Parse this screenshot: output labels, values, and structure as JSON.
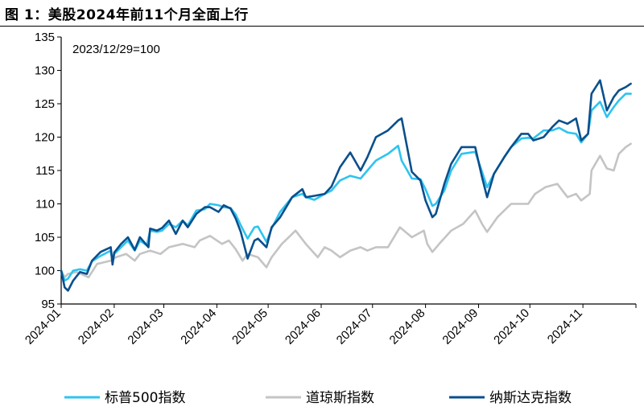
{
  "title": "图 1：美股2024年前11个月全面上行",
  "chart_data": {
    "type": "line",
    "annotation": "2023/12/29=100",
    "ylim": [
      95,
      135
    ],
    "yticks": [
      95,
      100,
      105,
      110,
      115,
      120,
      125,
      130,
      135
    ],
    "xlim": [
      "2024-01-01",
      "2024-12-02"
    ],
    "xticks": [
      "2024-01",
      "2024-02",
      "2024-03",
      "2024-04",
      "2024-05",
      "2024-06",
      "2024-07",
      "2024-08",
      "2024-09",
      "2024-10",
      "2024-11"
    ],
    "grid": false,
    "legend_position": "bottom",
    "series": [
      {
        "name": "标普500指数",
        "color": "#2EC4F0",
        "points": [
          [
            "2024-01-01",
            100.0
          ],
          [
            "2024-01-03",
            98.5
          ],
          [
            "2024-01-05",
            98.8
          ],
          [
            "2024-01-08",
            100.0
          ],
          [
            "2024-01-12",
            100.2
          ],
          [
            "2024-01-16",
            100.0
          ],
          [
            "2024-01-19",
            101.4
          ],
          [
            "2024-01-24",
            102.2
          ],
          [
            "2024-01-30",
            103.0
          ],
          [
            "2024-01-31",
            101.3
          ],
          [
            "2024-02-01",
            102.5
          ],
          [
            "2024-02-05",
            103.5
          ],
          [
            "2024-02-09",
            104.5
          ],
          [
            "2024-02-13",
            103.0
          ],
          [
            "2024-02-16",
            104.5
          ],
          [
            "2024-02-20",
            103.8
          ],
          [
            "2024-02-22",
            106.0
          ],
          [
            "2024-02-26",
            105.8
          ],
          [
            "2024-02-29",
            106.0
          ],
          [
            "2024-03-04",
            107.0
          ],
          [
            "2024-03-08",
            106.5
          ],
          [
            "2024-03-12",
            107.5
          ],
          [
            "2024-03-15",
            106.8
          ],
          [
            "2024-03-20",
            109.0
          ],
          [
            "2024-03-25",
            109.2
          ],
          [
            "2024-03-28",
            110.0
          ],
          [
            "2024-04-02",
            109.8
          ],
          [
            "2024-04-05",
            109.5
          ],
          [
            "2024-04-09",
            109.4
          ],
          [
            "2024-04-12",
            108.4
          ],
          [
            "2024-04-15",
            106.8
          ],
          [
            "2024-04-19",
            104.8
          ],
          [
            "2024-04-23",
            106.5
          ],
          [
            "2024-04-25",
            106.6
          ],
          [
            "2024-04-30",
            104.3
          ],
          [
            "2024-05-03",
            106.3
          ],
          [
            "2024-05-08",
            108.8
          ],
          [
            "2024-05-15",
            111.0
          ],
          [
            "2024-05-21",
            111.5
          ],
          [
            "2024-05-23",
            111.0
          ],
          [
            "2024-05-28",
            110.6
          ],
          [
            "2024-06-03",
            111.5
          ],
          [
            "2024-06-07",
            112.0
          ],
          [
            "2024-06-12",
            113.5
          ],
          [
            "2024-06-18",
            114.2
          ],
          [
            "2024-06-24",
            113.8
          ],
          [
            "2024-06-28",
            115.0
          ],
          [
            "2024-07-03",
            116.5
          ],
          [
            "2024-07-10",
            117.5
          ],
          [
            "2024-07-16",
            118.7
          ],
          [
            "2024-07-18",
            116.5
          ],
          [
            "2024-07-24",
            113.8
          ],
          [
            "2024-07-29",
            113.7
          ],
          [
            "2024-08-01",
            112.2
          ],
          [
            "2024-08-05",
            109.7
          ],
          [
            "2024-08-07",
            110.0
          ],
          [
            "2024-08-12",
            112.0
          ],
          [
            "2024-08-16",
            115.0
          ],
          [
            "2024-08-22",
            117.5
          ],
          [
            "2024-08-30",
            117.8
          ],
          [
            "2024-09-03",
            114.8
          ],
          [
            "2024-09-06",
            112.5
          ],
          [
            "2024-09-10",
            114.5
          ],
          [
            "2024-09-16",
            117.0
          ],
          [
            "2024-09-20",
            118.5
          ],
          [
            "2024-09-26",
            119.8
          ],
          [
            "2024-09-30",
            119.9
          ],
          [
            "2024-10-03",
            119.8
          ],
          [
            "2024-10-09",
            121.0
          ],
          [
            "2024-10-14",
            121.0
          ],
          [
            "2024-10-18",
            121.4
          ],
          [
            "2024-10-23",
            120.7
          ],
          [
            "2024-10-28",
            120.5
          ],
          [
            "2024-10-31",
            119.2
          ],
          [
            "2024-11-04",
            120.5
          ],
          [
            "2024-11-06",
            124.0
          ],
          [
            "2024-11-11",
            125.3
          ],
          [
            "2024-11-15",
            123.0
          ],
          [
            "2024-11-19",
            124.5
          ],
          [
            "2024-11-22",
            125.5
          ],
          [
            "2024-11-26",
            126.5
          ],
          [
            "2024-11-29",
            126.5
          ]
        ]
      },
      {
        "name": "道琼斯指数",
        "color": "#C4C4C4",
        "points": [
          [
            "2024-01-01",
            100.0
          ],
          [
            "2024-01-03",
            99.0
          ],
          [
            "2024-01-05",
            99.5
          ],
          [
            "2024-01-10",
            99.8
          ],
          [
            "2024-01-17",
            99.0
          ],
          [
            "2024-01-22",
            101.0
          ],
          [
            "2024-01-30",
            101.5
          ],
          [
            "2024-02-02",
            102.0
          ],
          [
            "2024-02-08",
            102.5
          ],
          [
            "2024-02-13",
            101.5
          ],
          [
            "2024-02-16",
            102.5
          ],
          [
            "2024-02-22",
            103.0
          ],
          [
            "2024-02-28",
            102.5
          ],
          [
            "2024-03-04",
            103.5
          ],
          [
            "2024-03-12",
            104.0
          ],
          [
            "2024-03-19",
            103.5
          ],
          [
            "2024-03-22",
            104.5
          ],
          [
            "2024-03-28",
            105.2
          ],
          [
            "2024-04-04",
            104.0
          ],
          [
            "2024-04-08",
            104.5
          ],
          [
            "2024-04-12",
            103.2
          ],
          [
            "2024-04-16",
            101.5
          ],
          [
            "2024-04-19",
            102.5
          ],
          [
            "2024-04-25",
            102.0
          ],
          [
            "2024-04-30",
            100.5
          ],
          [
            "2024-05-03",
            102.0
          ],
          [
            "2024-05-09",
            104.0
          ],
          [
            "2024-05-15",
            105.5
          ],
          [
            "2024-05-17",
            106.0
          ],
          [
            "2024-05-23",
            104.0
          ],
          [
            "2024-05-30",
            102.0
          ],
          [
            "2024-06-03",
            103.5
          ],
          [
            "2024-06-07",
            103.0
          ],
          [
            "2024-06-12",
            102.0
          ],
          [
            "2024-06-18",
            103.0
          ],
          [
            "2024-06-24",
            103.5
          ],
          [
            "2024-06-28",
            103.0
          ],
          [
            "2024-07-03",
            103.5
          ],
          [
            "2024-07-10",
            103.5
          ],
          [
            "2024-07-17",
            106.5
          ],
          [
            "2024-07-24",
            105.0
          ],
          [
            "2024-07-31",
            106.0
          ],
          [
            "2024-08-02",
            104.0
          ],
          [
            "2024-08-05",
            102.8
          ],
          [
            "2024-08-09",
            104.0
          ],
          [
            "2024-08-16",
            106.0
          ],
          [
            "2024-08-23",
            107.0
          ],
          [
            "2024-08-30",
            109.0
          ],
          [
            "2024-09-03",
            107.0
          ],
          [
            "2024-09-06",
            105.8
          ],
          [
            "2024-09-12",
            108.0
          ],
          [
            "2024-09-20",
            110.0
          ],
          [
            "2024-09-30",
            110.0
          ],
          [
            "2024-10-04",
            111.5
          ],
          [
            "2024-10-10",
            112.5
          ],
          [
            "2024-10-17",
            113.0
          ],
          [
            "2024-10-23",
            111.0
          ],
          [
            "2024-10-28",
            111.5
          ],
          [
            "2024-10-31",
            110.5
          ],
          [
            "2024-11-05",
            111.5
          ],
          [
            "2024-11-06",
            115.0
          ],
          [
            "2024-11-11",
            117.2
          ],
          [
            "2024-11-15",
            115.3
          ],
          [
            "2024-11-19",
            115.0
          ],
          [
            "2024-11-22",
            117.5
          ],
          [
            "2024-11-26",
            118.5
          ],
          [
            "2024-11-29",
            119.0
          ]
        ]
      },
      {
        "name": "纳斯达克指数",
        "color": "#0A4F8C",
        "points": [
          [
            "2024-01-01",
            100.0
          ],
          [
            "2024-01-03",
            97.5
          ],
          [
            "2024-01-05",
            97.0
          ],
          [
            "2024-01-08",
            98.5
          ],
          [
            "2024-01-12",
            99.8
          ],
          [
            "2024-01-16",
            99.5
          ],
          [
            "2024-01-19",
            101.5
          ],
          [
            "2024-01-24",
            102.8
          ],
          [
            "2024-01-30",
            103.5
          ],
          [
            "2024-01-31",
            100.9
          ],
          [
            "2024-02-01",
            102.7
          ],
          [
            "2024-02-05",
            104.0
          ],
          [
            "2024-02-09",
            105.0
          ],
          [
            "2024-02-13",
            103.1
          ],
          [
            "2024-02-16",
            105.0
          ],
          [
            "2024-02-21",
            103.5
          ],
          [
            "2024-02-22",
            106.3
          ],
          [
            "2024-02-26",
            106.0
          ],
          [
            "2024-02-29",
            106.4
          ],
          [
            "2024-03-04",
            107.5
          ],
          [
            "2024-03-08",
            105.5
          ],
          [
            "2024-03-12",
            107.5
          ],
          [
            "2024-03-15",
            106.5
          ],
          [
            "2024-03-20",
            108.5
          ],
          [
            "2024-03-25",
            109.5
          ],
          [
            "2024-03-28",
            109.5
          ],
          [
            "2024-04-02",
            108.8
          ],
          [
            "2024-04-05",
            109.8
          ],
          [
            "2024-04-09",
            109.3
          ],
          [
            "2024-04-12",
            107.8
          ],
          [
            "2024-04-15",
            105.8
          ],
          [
            "2024-04-19",
            101.8
          ],
          [
            "2024-04-23",
            104.5
          ],
          [
            "2024-04-25",
            104.8
          ],
          [
            "2024-04-30",
            103.5
          ],
          [
            "2024-05-03",
            106.5
          ],
          [
            "2024-05-08",
            108.0
          ],
          [
            "2024-05-15",
            111.0
          ],
          [
            "2024-05-21",
            112.2
          ],
          [
            "2024-05-23",
            111.0
          ],
          [
            "2024-05-28",
            111.2
          ],
          [
            "2024-06-03",
            111.5
          ],
          [
            "2024-06-07",
            112.6
          ],
          [
            "2024-06-12",
            115.5
          ],
          [
            "2024-06-18",
            117.7
          ],
          [
            "2024-06-24",
            115.0
          ],
          [
            "2024-06-28",
            117.0
          ],
          [
            "2024-07-03",
            120.0
          ],
          [
            "2024-07-10",
            121.0
          ],
          [
            "2024-07-16",
            122.5
          ],
          [
            "2024-07-18",
            122.8
          ],
          [
            "2024-07-24",
            114.8
          ],
          [
            "2024-07-29",
            113.5
          ],
          [
            "2024-08-01",
            110.5
          ],
          [
            "2024-08-05",
            108.0
          ],
          [
            "2024-08-07",
            108.5
          ],
          [
            "2024-08-12",
            113.0
          ],
          [
            "2024-08-16",
            116.0
          ],
          [
            "2024-08-22",
            118.5
          ],
          [
            "2024-08-30",
            118.5
          ],
          [
            "2024-09-03",
            114.0
          ],
          [
            "2024-09-06",
            111.0
          ],
          [
            "2024-09-10",
            114.5
          ],
          [
            "2024-09-16",
            117.0
          ],
          [
            "2024-09-20",
            118.5
          ],
          [
            "2024-09-26",
            120.5
          ],
          [
            "2024-09-30",
            120.5
          ],
          [
            "2024-10-03",
            119.5
          ],
          [
            "2024-10-09",
            120.0
          ],
          [
            "2024-10-14",
            121.5
          ],
          [
            "2024-10-18",
            122.5
          ],
          [
            "2024-10-23",
            122.0
          ],
          [
            "2024-10-28",
            122.8
          ],
          [
            "2024-10-31",
            119.5
          ],
          [
            "2024-11-04",
            120.5
          ],
          [
            "2024-11-06",
            126.5
          ],
          [
            "2024-11-11",
            128.5
          ],
          [
            "2024-11-15",
            124.0
          ],
          [
            "2024-11-19",
            126.0
          ],
          [
            "2024-11-22",
            127.0
          ],
          [
            "2024-11-26",
            127.5
          ],
          [
            "2024-11-29",
            128.0
          ]
        ]
      }
    ]
  }
}
